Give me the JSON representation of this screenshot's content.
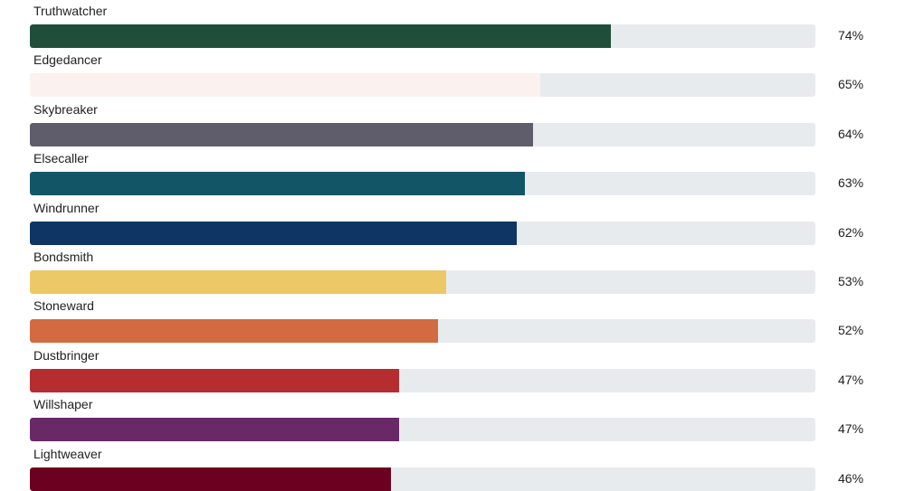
{
  "chart_data": {
    "type": "bar",
    "orientation": "horizontal",
    "title": "",
    "xlabel": "",
    "ylabel": "",
    "xlim": [
      0,
      100
    ],
    "grid": false,
    "categories": [
      "Truthwatcher",
      "Edgedancer",
      "Skybreaker",
      "Elsecaller",
      "Windrunner",
      "Bondsmith",
      "Stoneward",
      "Dustbringer",
      "Willshaper",
      "Lightweaver"
    ],
    "values": [
      74,
      65,
      64,
      63,
      62,
      53,
      52,
      47,
      47,
      46
    ],
    "value_labels": [
      "74%",
      "65%",
      "64%",
      "63%",
      "62%",
      "53%",
      "52%",
      "47%",
      "47%",
      "46%"
    ],
    "colors": [
      "#1f4f3a",
      "#fbf1ee",
      "#5f5d6b",
      "#125566",
      "#0e3564",
      "#ecc866",
      "#d26b41",
      "#b52d2f",
      "#682966",
      "#6b0020"
    ],
    "track_color": "#e8ebee"
  }
}
